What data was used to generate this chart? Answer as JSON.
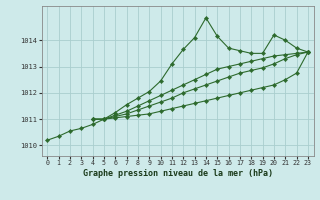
{
  "bg_color": "#ceeaea",
  "grid_color": "#aacece",
  "line_color": "#2d6a2d",
  "xlabel": "Graphe pression niveau de la mer (hPa)",
  "xlim": [
    -0.5,
    23.5
  ],
  "ylim": [
    1009.6,
    1015.3
  ],
  "yticks": [
    1010,
    1011,
    1012,
    1013,
    1014
  ],
  "xticks": [
    0,
    1,
    2,
    3,
    4,
    5,
    6,
    7,
    8,
    9,
    10,
    11,
    12,
    13,
    14,
    15,
    16,
    17,
    18,
    19,
    20,
    21,
    22,
    23
  ],
  "line1_x": [
    0,
    1,
    2,
    3,
    4,
    5,
    6,
    7,
    8,
    9,
    10,
    11,
    12,
    13,
    14,
    15,
    16,
    17,
    18,
    19,
    20,
    21,
    22,
    23
  ],
  "line1": [
    1010.2,
    1010.35,
    1010.55,
    1010.65,
    1010.8,
    1011.0,
    1011.25,
    1011.55,
    1011.8,
    1012.05,
    1012.45,
    1013.1,
    1013.65,
    1014.1,
    1014.85,
    1014.15,
    1013.7,
    1013.6,
    1013.5,
    1013.5,
    1014.2,
    1014.0,
    1013.7,
    1013.55
  ],
  "line2_x": [
    4,
    5,
    6,
    7,
    8,
    9,
    10,
    11,
    12,
    13,
    14,
    15,
    16,
    17,
    18,
    19,
    20,
    21,
    22,
    23
  ],
  "line2": [
    1011.0,
    1011.0,
    1011.05,
    1011.1,
    1011.15,
    1011.2,
    1011.3,
    1011.4,
    1011.5,
    1011.6,
    1011.7,
    1011.8,
    1011.9,
    1012.0,
    1012.1,
    1012.2,
    1012.3,
    1012.5,
    1012.75,
    1013.55
  ],
  "line3_x": [
    4,
    5,
    6,
    7,
    8,
    9,
    10,
    11,
    12,
    13,
    14,
    15,
    16,
    17,
    18,
    19,
    20,
    21,
    22,
    23
  ],
  "line3": [
    1011.0,
    1011.0,
    1011.1,
    1011.2,
    1011.35,
    1011.5,
    1011.65,
    1011.8,
    1012.0,
    1012.15,
    1012.3,
    1012.45,
    1012.6,
    1012.75,
    1012.85,
    1012.95,
    1013.1,
    1013.3,
    1013.45,
    1013.55
  ],
  "line4_x": [
    4,
    5,
    6,
    7,
    8,
    9,
    10,
    11,
    12,
    13,
    14,
    15,
    16,
    17,
    18,
    19,
    20,
    21,
    22,
    23
  ],
  "line4": [
    1011.0,
    1011.0,
    1011.15,
    1011.3,
    1011.5,
    1011.7,
    1011.9,
    1012.1,
    1012.3,
    1012.5,
    1012.7,
    1012.9,
    1013.0,
    1013.1,
    1013.2,
    1013.3,
    1013.4,
    1013.45,
    1013.5,
    1013.55
  ],
  "marker_size": 2.2,
  "line_width": 0.8,
  "tick_fontsize": 4.8,
  "xlabel_fontsize": 6.0
}
